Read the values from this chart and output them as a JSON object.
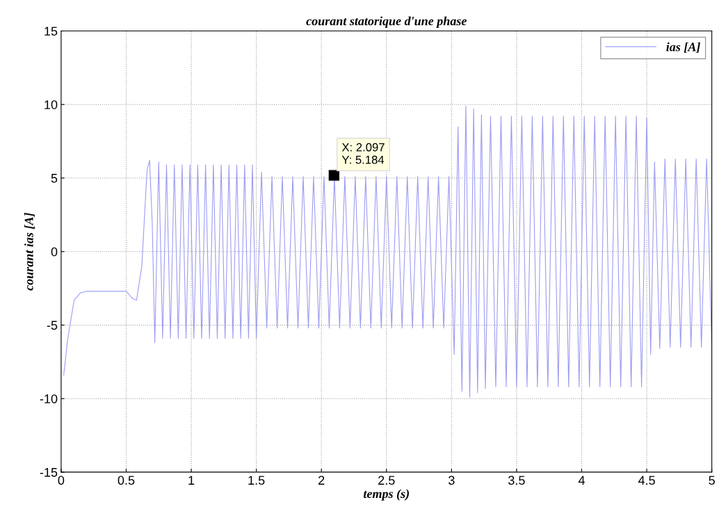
{
  "chart_data": {
    "type": "line",
    "title": "courant statorique d'une phase",
    "xlabel": "temps (s)",
    "ylabel": "courant ias [A]",
    "xlim": [
      0,
      5
    ],
    "ylim": [
      -15,
      15
    ],
    "xticks": [
      0,
      0.5,
      1,
      1.5,
      2,
      2.5,
      3,
      3.5,
      4,
      4.5,
      5
    ],
    "yticks": [
      -15,
      -10,
      -5,
      0,
      5,
      10,
      15
    ],
    "grid": true,
    "legend": "top right",
    "annotations": [
      {
        "text": "X: 2.097\nY: 5.184",
        "x": 2.097,
        "y": 5.184
      }
    ],
    "series": [
      {
        "name": "ias [A]",
        "color": "#9c9cf2",
        "x": [
          0.02,
          0.05,
          0.1,
          0.15,
          0.2,
          0.5,
          0.55,
          0.58,
          0.62,
          0.66,
          0.68,
          0.7,
          0.72,
          0.75,
          0.78,
          0.81,
          0.84,
          0.87,
          0.9,
          0.93,
          0.96,
          0.99,
          1.02,
          1.05,
          1.08,
          1.11,
          1.14,
          1.17,
          1.2,
          1.23,
          1.26,
          1.29,
          1.32,
          1.35,
          1.38,
          1.41,
          1.44,
          1.47,
          1.5,
          1.54,
          1.58,
          1.62,
          1.66,
          1.7,
          1.74,
          1.78,
          1.82,
          1.86,
          1.9,
          1.94,
          1.98,
          2.02,
          2.06,
          2.1,
          2.14,
          2.18,
          2.22,
          2.26,
          2.3,
          2.34,
          2.38,
          2.42,
          2.46,
          2.5,
          2.54,
          2.58,
          2.62,
          2.66,
          2.7,
          2.74,
          2.78,
          2.82,
          2.86,
          2.9,
          2.94,
          2.98,
          3.02,
          3.05,
          3.08,
          3.11,
          3.14,
          3.17,
          3.2,
          3.23,
          3.26,
          3.3,
          3.34,
          3.38,
          3.42,
          3.46,
          3.5,
          3.54,
          3.58,
          3.62,
          3.66,
          3.7,
          3.74,
          3.78,
          3.82,
          3.86,
          3.9,
          3.94,
          3.98,
          4.02,
          4.06,
          4.1,
          4.14,
          4.18,
          4.22,
          4.26,
          4.3,
          4.34,
          4.38,
          4.42,
          4.46,
          4.5,
          4.53,
          4.56,
          4.6,
          4.64,
          4.68,
          4.72,
          4.76,
          4.8,
          4.84,
          4.88,
          4.92,
          4.96,
          5
        ],
        "values": [
          -8.4,
          -6,
          -3.3,
          -2.8,
          -2.7,
          -2.7,
          -3.2,
          -3.3,
          -1,
          5.5,
          6.2,
          2,
          -6.2,
          6.1,
          -5.9,
          5.9,
          -5.9,
          5.9,
          -5.9,
          5.9,
          -5.9,
          5.9,
          -5.9,
          5.9,
          -5.9,
          5.9,
          -5.9,
          5.9,
          -5.9,
          5.9,
          -5.9,
          5.9,
          -5.9,
          5.9,
          -5.9,
          5.9,
          -5.9,
          5.9,
          -5.9,
          5.4,
          -5.2,
          5.1,
          -5.2,
          5.1,
          -5.2,
          5.1,
          -5.2,
          5.1,
          -5.2,
          5.1,
          -5.2,
          5.1,
          -5.2,
          5.1,
          -5.2,
          5.1,
          -5.2,
          5.1,
          -5.2,
          5.1,
          -5.2,
          5.1,
          -5.2,
          5.1,
          -5.2,
          5.1,
          -5.2,
          5.1,
          -5.2,
          5.1,
          -5.2,
          5.1,
          -5.2,
          5.1,
          -5.2,
          5.1,
          -7,
          8.5,
          -9.5,
          9.9,
          -9.9,
          9.7,
          -9.6,
          9.3,
          -9.3,
          9.2,
          -9.2,
          9.2,
          -9.2,
          9.2,
          -9.2,
          9.2,
          -9.2,
          9.2,
          -9.2,
          9.2,
          -9.2,
          9.2,
          -9.2,
          9.2,
          -9.2,
          9.2,
          -9.2,
          9.2,
          -9.2,
          9.2,
          -9.2,
          9.2,
          -9.2,
          9.2,
          -9.2,
          9.2,
          -9.2,
          9.2,
          -9.2,
          9.1,
          -7,
          6.1,
          -6.6,
          6.3,
          -6.5,
          6.3,
          -6.5,
          6.3,
          -6.5,
          6.3,
          -6.5,
          6.3,
          -6.5
        ]
      }
    ]
  }
}
